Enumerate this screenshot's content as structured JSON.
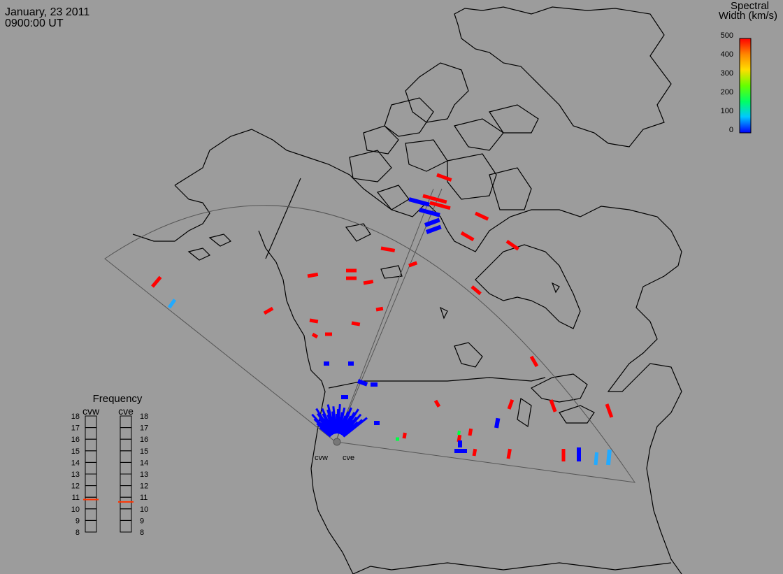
{
  "header": {
    "date": "January, 23 2011",
    "time": "0900:00 UT"
  },
  "colorbar": {
    "title_line1": "Spectral",
    "title_line2": "Width (km/s)",
    "ticks": [
      "500",
      "400",
      "300",
      "200",
      "100",
      "0"
    ],
    "range": [
      0,
      500
    ],
    "colors": [
      "#0000ff",
      "#00c8ff",
      "#00ff66",
      "#66ff00",
      "#ffdd00",
      "#ff8800",
      "#ff0000"
    ]
  },
  "frequency_panel": {
    "title": "Frequency",
    "radars": [
      "cvw",
      "cve"
    ],
    "ticks": [
      "18",
      "17",
      "16",
      "15",
      "14",
      "13",
      "12",
      "11",
      "10",
      "9",
      "8"
    ],
    "range_mhz": [
      8,
      18
    ],
    "values_mhz": [
      10.8,
      10.6
    ],
    "marker_color": "#ff3300"
  },
  "map": {
    "radar_labels": [
      "cvw",
      "cve"
    ],
    "background": "#9c9c9c",
    "coast_color": "#000000",
    "fov_color": "#555555",
    "colors": {
      "high": "#ff0000",
      "low": "#0000ff",
      "mid": "#22aaff",
      "green": "#00ff44"
    }
  }
}
